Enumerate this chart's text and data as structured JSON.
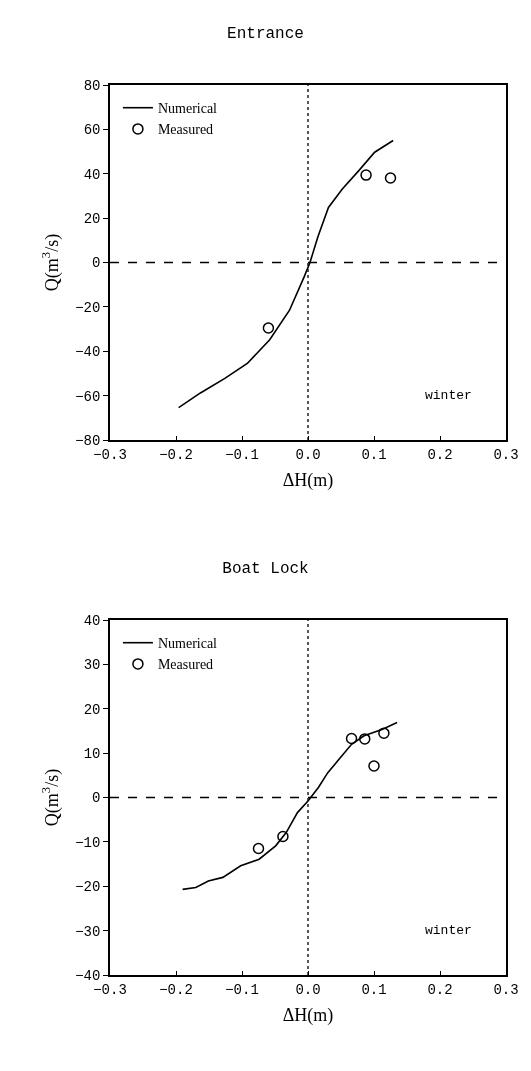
{
  "chart_data": [
    {
      "type": "line",
      "title": "Entrance",
      "xlabel": "ΔH(m)",
      "ylabel": "Q(m$^{3}$/s)",
      "xlim": [
        -0.3,
        0.3
      ],
      "xticks": [
        -0.3,
        -0.2,
        -0.1,
        {
          "value": 0,
          "label": "0.0"
        },
        0.1,
        0.2,
        0.3
      ],
      "ylim": [
        -80,
        80
      ],
      "yticks": [
        -80,
        -60,
        -40,
        -20,
        0,
        20,
        40,
        60,
        80
      ],
      "grid": false,
      "legend": "top left",
      "annotations": [
        "winter"
      ],
      "ref_lines": [
        {
          "axis": "x",
          "value": 0,
          "line_style": "dotted",
          "color": "#000000"
        },
        {
          "axis": "y",
          "value": 0,
          "line_style": "dashed",
          "color": "#000000"
        }
      ],
      "series": [
        {
          "name": "Numerical",
          "color": "#000000",
          "marker": "none",
          "line_style": "solid",
          "x": [
            -0.196,
            -0.163,
            -0.126,
            -0.092,
            -0.058,
            -0.028,
            -0.006,
            0.003,
            0.015,
            0.031,
            0.052,
            0.077,
            0.101,
            0.129
          ],
          "values": [
            -65.4,
            -58.8,
            -52.2,
            -45.5,
            -34.8,
            -21.5,
            -6.6,
            0,
            11.6,
            24.8,
            33.1,
            41.4,
            49.7,
            55.0
          ]
        },
        {
          "name": "Measured",
          "type": "scatter",
          "color": "#000000",
          "marker": "circle",
          "x": [
            -0.06,
            0.088,
            0.125
          ],
          "values": [
            -29.5,
            39.4,
            38.1
          ]
        }
      ]
    },
    {
      "type": "line",
      "title": "Boat Lock",
      "xlabel": "ΔH(m)",
      "ylabel": "Q(m$^{3}$/s)",
      "xlim": [
        -0.3,
        0.3
      ],
      "xticks": [
        -0.3,
        -0.2,
        -0.1,
        {
          "value": 0,
          "label": "0.0"
        },
        0.1,
        0.2,
        0.3
      ],
      "ylim": [
        -40,
        40
      ],
      "yticks": [
        -40,
        -30,
        -20,
        -10,
        0,
        10,
        20,
        30,
        40
      ],
      "grid": false,
      "legend": "top left",
      "annotations": [
        "winter"
      ],
      "ref_lines": [
        {
          "axis": "x",
          "value": 0,
          "line_style": "dotted",
          "color": "#000000"
        },
        {
          "axis": "y",
          "value": 0,
          "line_style": "dashed",
          "color": "#000000"
        }
      ],
      "series": [
        {
          "name": "Numerical",
          "color": "#000000",
          "marker": "none",
          "line_style": "solid",
          "x": [
            -0.19,
            -0.17,
            -0.151,
            -0.129,
            -0.102,
            -0.074,
            -0.049,
            -0.033,
            -0.016,
            0,
            0.016,
            0.03,
            0.047,
            0.066,
            0.085,
            0.113,
            0.135
          ],
          "values": [
            -20.7,
            -20.3,
            -18.8,
            -18.0,
            -15.4,
            -13.9,
            -10.9,
            -7.9,
            -3.4,
            -0.8,
            2.3,
            5.6,
            8.6,
            12.0,
            13.9,
            15.4,
            16.9
          ]
        },
        {
          "name": "Measured",
          "type": "scatter",
          "color": "#000000",
          "marker": "circle",
          "x": [
            -0.075,
            -0.038,
            0.066,
            0.086,
            0.1,
            0.115
          ],
          "values": [
            -11.5,
            -8.8,
            13.3,
            13.2,
            7.1,
            14.5
          ]
        }
      ]
    }
  ]
}
